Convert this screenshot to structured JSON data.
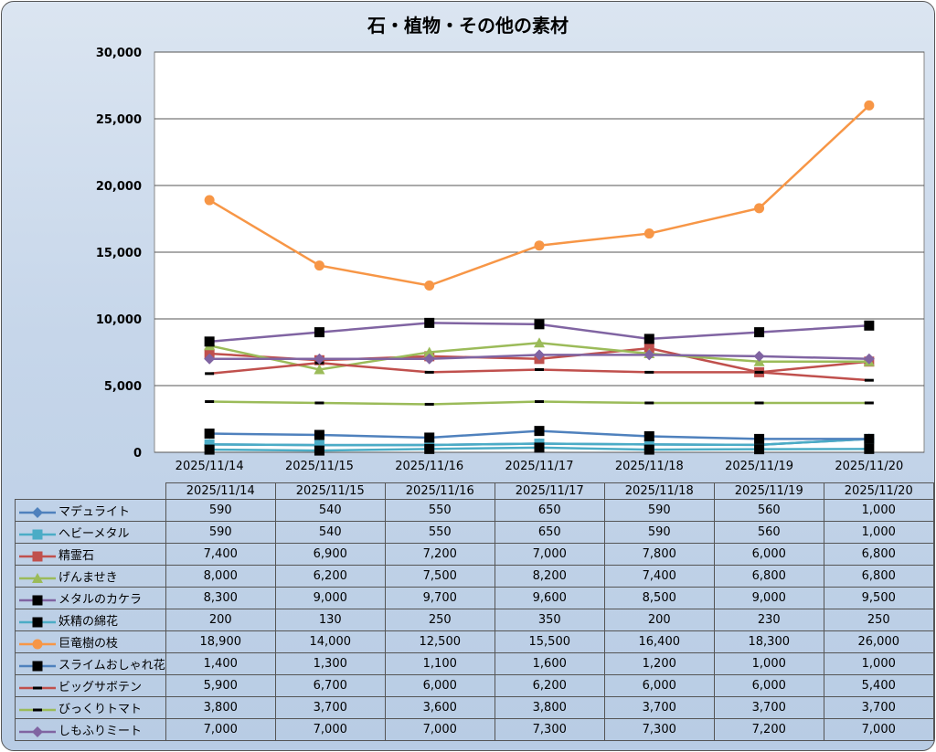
{
  "chart_data": {
    "type": "line",
    "title": "石・植物・その他の素材",
    "categories": [
      "2025/11/14",
      "2025/11/15",
      "2025/11/16",
      "2025/11/17",
      "2025/11/18",
      "2025/11/19",
      "2025/11/20"
    ],
    "ylim": [
      0,
      30000
    ],
    "yticks": [
      0,
      5000,
      10000,
      15000,
      20000,
      25000,
      30000
    ],
    "ytick_labels": [
      "0",
      "5,000",
      "10,000",
      "15,000",
      "20,000",
      "25,000",
      "30,000"
    ],
    "grid": true,
    "legend": "data-table",
    "series": [
      {
        "name": "マデュライト",
        "color": "#4f81bd",
        "marker": "diamond",
        "markerColor": "#4f81bd",
        "values": [
          590,
          540,
          550,
          650,
          590,
          560,
          1000
        ],
        "labels": [
          "590",
          "540",
          "550",
          "650",
          "590",
          "560",
          "1,000"
        ]
      },
      {
        "name": "ヘビーメタル",
        "color": "#4bacc6",
        "marker": "square",
        "markerColor": "#4bacc6",
        "values": [
          590,
          540,
          550,
          650,
          590,
          560,
          1000
        ],
        "labels": [
          "590",
          "540",
          "550",
          "650",
          "590",
          "560",
          "1,000"
        ]
      },
      {
        "name": "精霊石",
        "color": "#c0504d",
        "marker": "square",
        "markerColor": "#c0504d",
        "values": [
          7400,
          6900,
          7200,
          7000,
          7800,
          6000,
          6800
        ],
        "labels": [
          "7,400",
          "6,900",
          "7,200",
          "7,000",
          "7,800",
          "6,000",
          "6,800"
        ]
      },
      {
        "name": "げんませき",
        "color": "#9bbb59",
        "marker": "triangle",
        "markerColor": "#9bbb59",
        "values": [
          8000,
          6200,
          7500,
          8200,
          7400,
          6800,
          6800
        ],
        "labels": [
          "8,000",
          "6,200",
          "7,500",
          "8,200",
          "7,400",
          "6,800",
          "6,800"
        ]
      },
      {
        "name": "メタルのカケラ",
        "color": "#8064a2",
        "marker": "square",
        "markerColor": "#000000",
        "values": [
          8300,
          9000,
          9700,
          9600,
          8500,
          9000,
          9500
        ],
        "labels": [
          "8,300",
          "9,000",
          "9,700",
          "9,600",
          "8,500",
          "9,000",
          "9,500"
        ]
      },
      {
        "name": "妖精の綿花",
        "color": "#4bacc6",
        "marker": "square",
        "markerColor": "#000000",
        "values": [
          200,
          130,
          250,
          350,
          200,
          230,
          250
        ],
        "labels": [
          "200",
          "130",
          "250",
          "350",
          "200",
          "230",
          "250"
        ]
      },
      {
        "name": "巨竜樹の枝",
        "color": "#f79646",
        "marker": "circle",
        "markerColor": "#f79646",
        "values": [
          18900,
          14000,
          12500,
          15500,
          16400,
          18300,
          26000
        ],
        "labels": [
          "18,900",
          "14,000",
          "12,500",
          "15,500",
          "16,400",
          "18,300",
          "26,000"
        ]
      },
      {
        "name": "スライムおしゃれ花",
        "color": "#4f81bd",
        "marker": "square",
        "markerColor": "#000000",
        "values": [
          1400,
          1300,
          1100,
          1600,
          1200,
          1000,
          1000
        ],
        "labels": [
          "1,400",
          "1,300",
          "1,100",
          "1,600",
          "1,200",
          "1,000",
          "1,000"
        ]
      },
      {
        "name": "ビッグサボテン",
        "color": "#c0504d",
        "marker": "dash",
        "markerColor": "#000000",
        "values": [
          5900,
          6700,
          6000,
          6200,
          6000,
          6000,
          5400
        ],
        "labels": [
          "5,900",
          "6,700",
          "6,000",
          "6,200",
          "6,000",
          "6,000",
          "5,400"
        ]
      },
      {
        "name": "びっくりトマト",
        "color": "#9bbb59",
        "marker": "dash",
        "markerColor": "#000000",
        "values": [
          3800,
          3700,
          3600,
          3800,
          3700,
          3700,
          3700
        ],
        "labels": [
          "3,800",
          "3,700",
          "3,600",
          "3,800",
          "3,700",
          "3,700",
          "3,700"
        ]
      },
      {
        "name": "しもふりミート",
        "color": "#8064a2",
        "marker": "diamond",
        "markerColor": "#8064a2",
        "values": [
          7000,
          7000,
          7000,
          7300,
          7300,
          7200,
          7000
        ],
        "labels": [
          "7,000",
          "7,000",
          "7,000",
          "7,300",
          "7,300",
          "7,200",
          "7,000"
        ]
      }
    ]
  }
}
